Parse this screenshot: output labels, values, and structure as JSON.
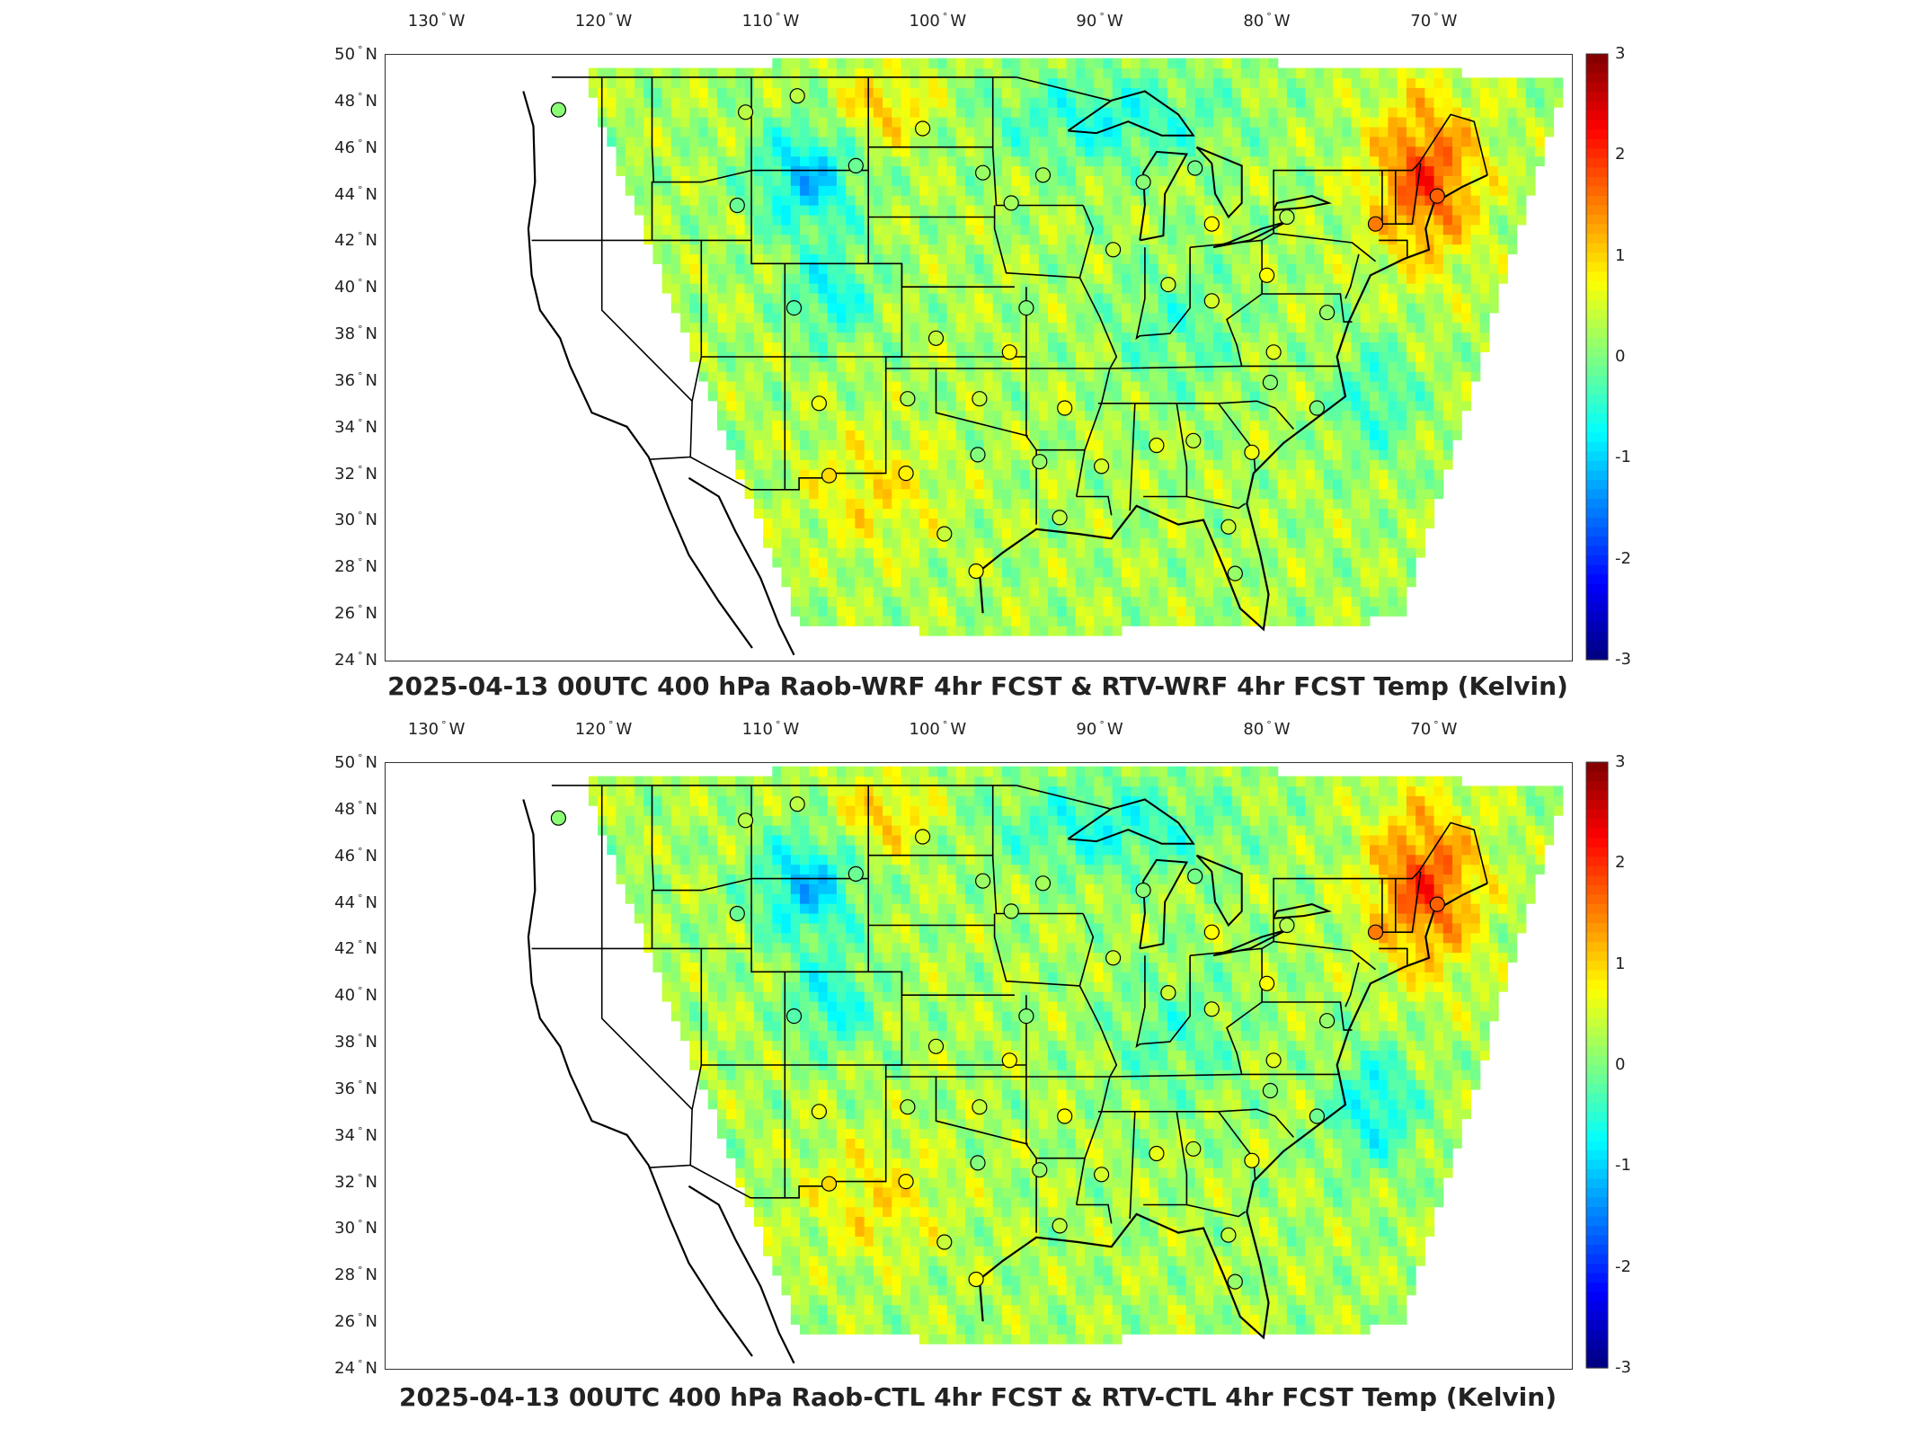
{
  "panels": [
    {
      "title": "2025-04-13 00UTC 400 hPa Raob-WRF 4hr FCST & RTV-WRF 4hr FCST Temp (Kelvin)"
    },
    {
      "title": "2025-04-13 00UTC 400 hPa Raob-CTL 4hr FCST & RTV-CTL 4hr FCST Temp (Kelvin)"
    }
  ],
  "lon_ticks": [
    "130",
    "120",
    "110",
    "100",
    "90",
    "80",
    "70"
  ],
  "lon_suffix": "W",
  "lat_ticks": [
    "50",
    "48",
    "46",
    "44",
    "42",
    "40",
    "38",
    "36",
    "34",
    "32",
    "30",
    "28",
    "26",
    "24"
  ],
  "lat_suffix": "N",
  "colorbar": {
    "ticks": [
      "3",
      "2",
      "1",
      "0",
      "-1",
      "-2",
      "-3"
    ],
    "range": [
      -3,
      3
    ],
    "colormap": "jet"
  },
  "stations": [
    {
      "lon": -122.6,
      "lat": 47.6
    },
    {
      "lon": -111.4,
      "lat": 47.5
    },
    {
      "lon": -100.8,
      "lat": 46.8
    },
    {
      "lon": -97.2,
      "lat": 44.9
    },
    {
      "lon": -93.6,
      "lat": 44.8
    },
    {
      "lon": -87.6,
      "lat": 44.5
    },
    {
      "lon": -84.5,
      "lat": 45.1
    },
    {
      "lon": -83.5,
      "lat": 42.7
    },
    {
      "lon": -79.0,
      "lat": 43.0
    },
    {
      "lon": -73.7,
      "lat": 42.7
    },
    {
      "lon": -70.0,
      "lat": 43.9
    },
    {
      "lon": -111.9,
      "lat": 43.5
    },
    {
      "lon": -104.8,
      "lat": 45.2
    },
    {
      "lon": -89.4,
      "lat": 41.6
    },
    {
      "lon": -86.1,
      "lat": 40.1
    },
    {
      "lon": -80.2,
      "lat": 40.5
    },
    {
      "lon": -83.5,
      "lat": 39.4
    },
    {
      "lon": -76.6,
      "lat": 38.9
    },
    {
      "lon": -79.8,
      "lat": 37.2
    },
    {
      "lon": -80.0,
      "lat": 35.9
    },
    {
      "lon": -77.2,
      "lat": 34.8
    },
    {
      "lon": -81.1,
      "lat": 32.9
    },
    {
      "lon": -82.5,
      "lat": 29.7
    },
    {
      "lon": -84.6,
      "lat": 33.4
    },
    {
      "lon": -86.8,
      "lat": 33.2
    },
    {
      "lon": -90.1,
      "lat": 32.3
    },
    {
      "lon": -93.8,
      "lat": 32.5
    },
    {
      "lon": -92.6,
      "lat": 30.1
    },
    {
      "lon": -97.6,
      "lat": 27.8
    },
    {
      "lon": -99.5,
      "lat": 29.4
    },
    {
      "lon": -97.5,
      "lat": 32.8
    },
    {
      "lon": -101.8,
      "lat": 32.0
    },
    {
      "lon": -106.4,
      "lat": 31.9
    },
    {
      "lon": -107.0,
      "lat": 35.0
    },
    {
      "lon": -101.7,
      "lat": 35.2
    },
    {
      "lon": -97.4,
      "lat": 35.2
    },
    {
      "lon": -92.3,
      "lat": 34.8
    },
    {
      "lon": -95.6,
      "lat": 37.2
    },
    {
      "lon": -100.0,
      "lat": 37.8
    },
    {
      "lon": -94.6,
      "lat": 39.1
    },
    {
      "lon": -108.5,
      "lat": 39.1
    },
    {
      "lon": -82.1,
      "lat": 27.7
    },
    {
      "lon": -95.5,
      "lat": 43.6
    },
    {
      "lon": -108.3,
      "lat": 48.2
    }
  ]
}
